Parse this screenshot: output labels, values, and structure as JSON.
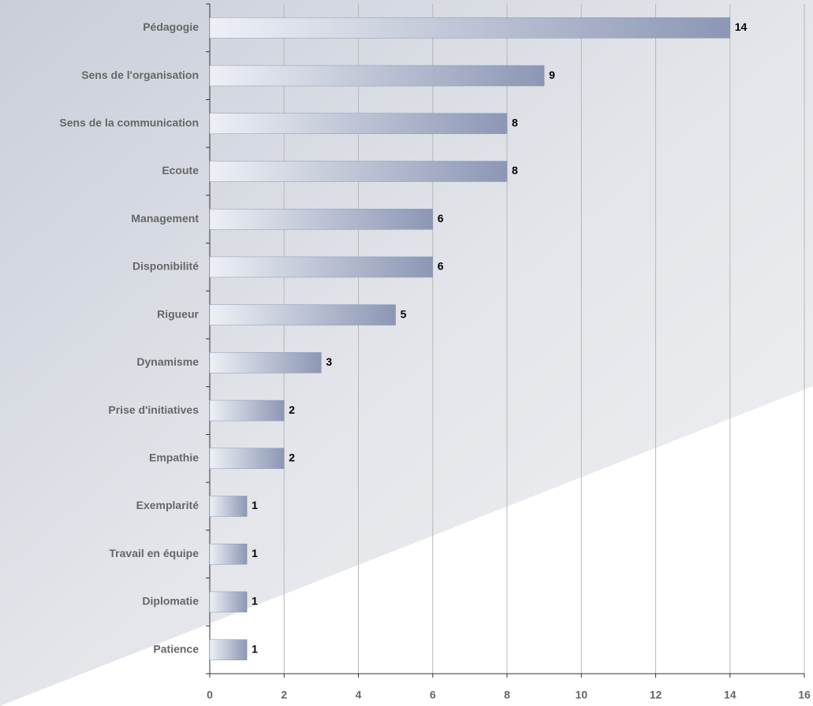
{
  "chart_data": {
    "type": "hbar",
    "categories": [
      "Pédagogie",
      "Sens de l'organisation",
      "Sens de la communication",
      "Ecoute",
      "Management",
      "Disponibilité",
      "Rigueur",
      "Dynamisme",
      "Prise d'initiatives",
      "Empathie",
      "Exemplarité",
      "Travail en équipe",
      "Diplomatie",
      "Patience"
    ],
    "values": [
      14,
      9,
      8,
      8,
      6,
      6,
      5,
      3,
      2,
      2,
      1,
      1,
      1,
      1
    ],
    "color": "#8c97b5",
    "xlim": [
      0,
      16
    ],
    "xticks": [
      0,
      2,
      4,
      6,
      8,
      10,
      12,
      14,
      16
    ],
    "grid": true
  }
}
